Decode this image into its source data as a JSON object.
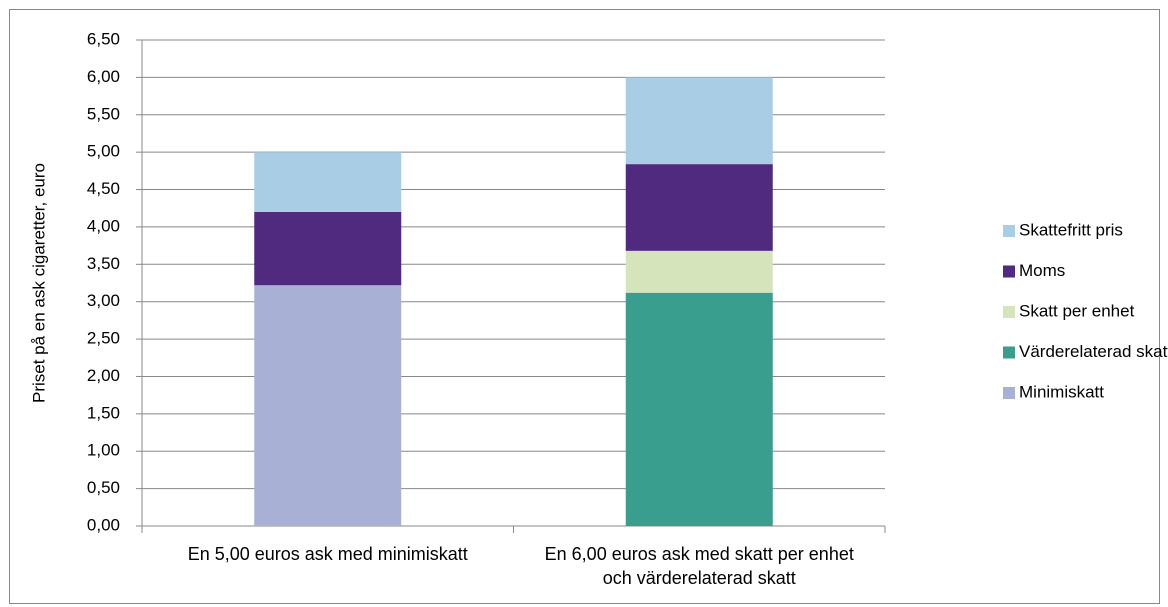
{
  "chart_data": {
    "type": "stacked_bar",
    "y_label": "Priset på en ask cigaretter, euro",
    "categories": [
      "En 5,00 euros ask med minimiskatt",
      "En 6,00 euros ask med skatt per enhet och värderelaterad skatt"
    ],
    "series": [
      {
        "name": "Minimiskatt",
        "color": "#a9b0d6",
        "values": [
          3.22,
          null
        ]
      },
      {
        "name": "Värderelaterad skatt",
        "color": "#3a9e8f",
        "values": [
          null,
          3.12
        ]
      },
      {
        "name": "Skatt per enhet",
        "color": "#d6e4bb",
        "values": [
          null,
          0.56
        ]
      },
      {
        "name": "Moms",
        "color": "#4f2a7e",
        "values": [
          0.98,
          1.16
        ]
      },
      {
        "name": "Skattefritt pris",
        "color": "#a8cde4",
        "values": [
          0.8,
          1.16
        ]
      }
    ],
    "ylim": [
      0,
      6.5
    ],
    "yticks": [
      {
        "value": 0,
        "label": "0,00"
      },
      {
        "value": 0.5,
        "label": "0,50"
      },
      {
        "value": 1,
        "label": "1,00"
      },
      {
        "value": 1.5,
        "label": "1,50"
      },
      {
        "value": 2,
        "label": "2,00"
      },
      {
        "value": 2.5,
        "label": "2,50"
      },
      {
        "value": 3,
        "label": "3,00"
      },
      {
        "value": 3.5,
        "label": "3,50"
      },
      {
        "value": 4,
        "label": "4,00"
      },
      {
        "value": 4.5,
        "label": "4,50"
      },
      {
        "value": 5,
        "label": "5,00"
      },
      {
        "value": 5.5,
        "label": "5,50"
      },
      {
        "value": 6,
        "label": "6,00"
      },
      {
        "value": 6.5,
        "label": "6,50"
      }
    ],
    "grid": true,
    "legend": "right"
  }
}
